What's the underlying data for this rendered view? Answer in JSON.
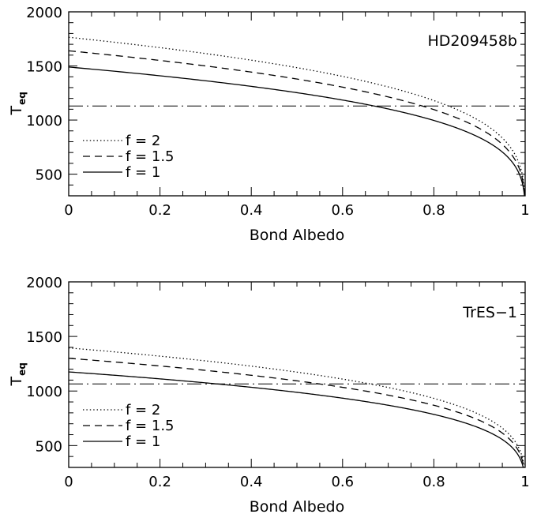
{
  "chart_data": [
    {
      "type": "line",
      "panel_label": "HD209458b",
      "xlabel": "Bond Albedo",
      "ylabel": "T",
      "ylabel_sub": "eq",
      "xlim": [
        0,
        1
      ],
      "ylim": [
        300,
        2000
      ],
      "xticks": [
        0,
        0.2,
        0.4,
        0.6,
        0.8,
        1
      ],
      "xtick_labels": [
        "0",
        "0.2",
        "0.4",
        "0.6",
        "0.8",
        "1"
      ],
      "yticks": [
        500,
        1000,
        1500,
        2000
      ],
      "ytick_labels": [
        "500",
        "1000",
        "1500",
        "2000"
      ],
      "legend_position": "lower-left",
      "series": [
        {
          "name": "f = 2",
          "style": "dotted",
          "t0": 1765
        },
        {
          "name": "f = 1.5",
          "style": "dashed",
          "t0": 1640
        },
        {
          "name": "f = 1",
          "style": "solid",
          "t0": 1490
        }
      ],
      "reference_line": {
        "style": "dash-dot",
        "y": 1130
      }
    },
    {
      "type": "line",
      "panel_label": "TrES−1",
      "xlabel": "Bond Albedo",
      "ylabel": "T",
      "ylabel_sub": "eq",
      "xlim": [
        0,
        1
      ],
      "ylim": [
        300,
        2000
      ],
      "xticks": [
        0,
        0.2,
        0.4,
        0.6,
        0.8,
        1
      ],
      "xtick_labels": [
        "0",
        "0.2",
        "0.4",
        "0.6",
        "0.8",
        "1"
      ],
      "yticks": [
        500,
        1000,
        1500,
        2000
      ],
      "ytick_labels": [
        "500",
        "1000",
        "1500",
        "2000"
      ],
      "legend_position": "lower-left",
      "series": [
        {
          "name": "f = 2",
          "style": "dotted",
          "t0": 1395
        },
        {
          "name": "f = 1.5",
          "style": "dashed",
          "t0": 1300
        },
        {
          "name": "f = 1",
          "style": "solid",
          "t0": 1175
        }
      ],
      "reference_line": {
        "style": "dash-dot",
        "y": 1065
      }
    }
  ]
}
